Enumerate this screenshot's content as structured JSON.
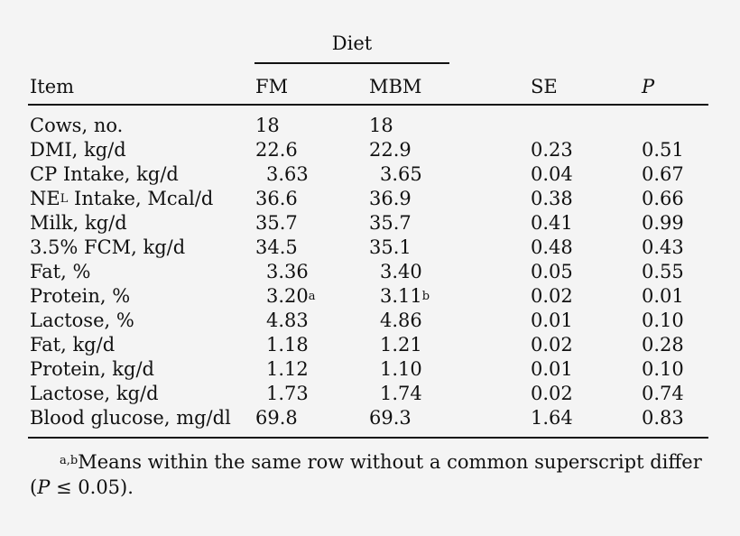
{
  "table": {
    "group_header": "Diet",
    "columns": {
      "item": "Item",
      "fm": "FM",
      "mbm": "MBM",
      "se": "SE",
      "p": "P"
    },
    "rows": [
      {
        "item": "Cows, no.",
        "fm": "18",
        "mbm": "18",
        "se": "",
        "p": ""
      },
      {
        "item": "DMI, kg/d",
        "fm": "22.6",
        "mbm": "22.9",
        "se": "0.23",
        "p": "0.51"
      },
      {
        "item": "CP Intake, kg/d",
        "fm": "3.63",
        "mbm": "3.65",
        "se": "0.04",
        "p": "0.67"
      },
      {
        "item_pre": "NE",
        "item_sub": "L",
        "item_post": " Intake, Mcal/d",
        "fm": "36.6",
        "mbm": "36.9",
        "se": "0.38",
        "p": "0.66"
      },
      {
        "item": "Milk, kg/d",
        "fm": "35.7",
        "mbm": "35.7",
        "se": "0.41",
        "p": "0.99"
      },
      {
        "item": "3.5% FCM, kg/d",
        "fm": "34.5",
        "mbm": "35.1",
        "se": "0.48",
        "p": "0.43"
      },
      {
        "item": "Fat, %",
        "fm": "3.36",
        "mbm": "3.40",
        "se": "0.05",
        "p": "0.55"
      },
      {
        "item": "Protein, %",
        "fm": "3.20",
        "fm_sup": "a",
        "mbm": "3.11",
        "mbm_sup": "b",
        "se": "0.02",
        "p": "0.01"
      },
      {
        "item": "Lactose, %",
        "fm": "4.83",
        "mbm": "4.86",
        "se": "0.01",
        "p": "0.10"
      },
      {
        "item": "Fat, kg/d",
        "fm": "1.18",
        "mbm": "1.21",
        "se": "0.02",
        "p": "0.28"
      },
      {
        "item": "Protein, kg/d",
        "fm": "1.12",
        "mbm": "1.10",
        "se": "0.01",
        "p": "0.10"
      },
      {
        "item": "Lactose, kg/d",
        "fm": "1.73",
        "mbm": "1.74",
        "se": "0.02",
        "p": "0.74"
      },
      {
        "item": "Blood glucose, mg/dl",
        "fm": "69.8",
        "mbm": "69.3",
        "se": "1.64",
        "p": "0.83"
      }
    ]
  },
  "footnote": {
    "sup": "a,b",
    "text_1": "Means within the same row without a common superscript differ (",
    "p_symbol": "P",
    "text_2": " ≤ 0.05)."
  }
}
